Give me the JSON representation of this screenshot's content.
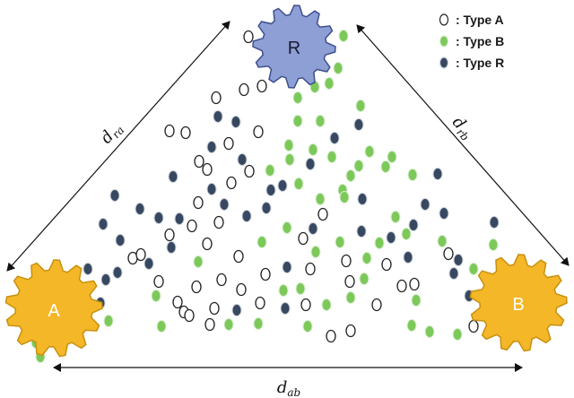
{
  "nodes": {
    "r": {
      "label": "R",
      "fill": "#8e9fd6",
      "stroke": "#3d4f8c",
      "text_color": "#1a1a2e"
    },
    "a": {
      "label": "A",
      "fill": "#f4b728",
      "stroke": "#c7900e",
      "text_color": "#ffffff"
    },
    "b": {
      "label": "B",
      "fill": "#f4b728",
      "stroke": "#c7900e",
      "text_color": "#ffffff"
    }
  },
  "distances": {
    "ra": {
      "main": "d",
      "sub": "ra"
    },
    "rb": {
      "main": "d",
      "sub": "rb"
    },
    "ab": {
      "main": "d",
      "sub": "ab"
    }
  },
  "legend": [
    {
      "label": ": Type A",
      "kind": "a"
    },
    {
      "label": ": Type B",
      "kind": "b"
    },
    {
      "label": ": Type R",
      "kind": "r"
    }
  ],
  "particle_styles": {
    "a": {
      "fill": "#ffffff",
      "stroke": "#222222"
    },
    "b": {
      "fill": "#7cc95a",
      "stroke": "#d8eed0"
    },
    "r": {
      "fill": "#374860",
      "stroke": "#c9d0da"
    }
  }
}
